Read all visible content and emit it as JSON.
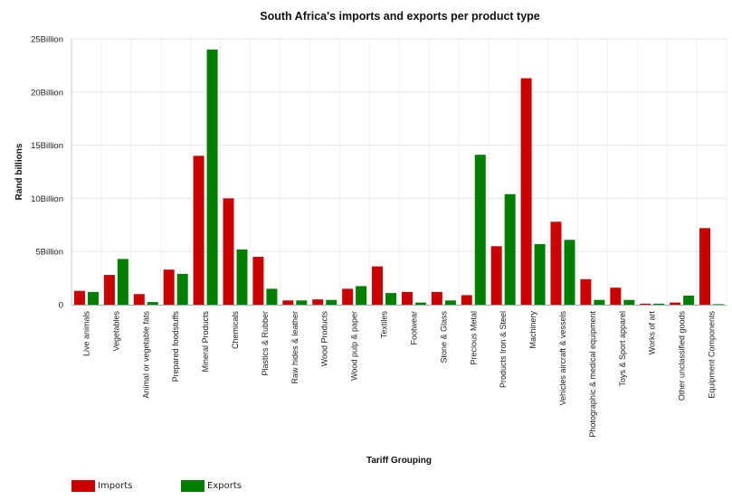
{
  "chart_data": {
    "type": "bar",
    "title": "South Africa's imports and exports per product type",
    "xlabel": "Tariff Grouping",
    "ylabel": "Rand billions",
    "ylim": [
      0,
      25
    ],
    "yticks": [
      {
        "value": 0,
        "label": "0"
      },
      {
        "value": 5,
        "label": "5Billion"
      },
      {
        "value": 10,
        "label": "10Billion"
      },
      {
        "value": 15,
        "label": "15Billion"
      },
      {
        "value": 20,
        "label": "20Billion"
      },
      {
        "value": 25,
        "label": "25Billion"
      }
    ],
    "grid": true,
    "legend_position": "bottom-left",
    "categories": [
      "Live animals",
      "Vegetables",
      "Animal or vegetable fats",
      "Prepared foodstuffs",
      "Mineral Products",
      "Chemicals",
      "Plastics & Rubber",
      "Raw hides & leather",
      "Wood Products",
      "Wood pulp & paper",
      "Textiles",
      "Footwear",
      "Stone & Glass",
      "Precious Metal",
      "Products Iron & Steel",
      "Machinery",
      "Vehicles aircraft & vessels",
      "Photographic & medical equipment",
      "Toys & Sport apparel",
      "Works of art",
      "Other unclassified goods",
      "Equipment Components"
    ],
    "series": [
      {
        "name": "Imports",
        "color": "#cc0000",
        "values": [
          1.3,
          2.8,
          1.0,
          3.3,
          14.0,
          10.0,
          4.5,
          0.4,
          0.5,
          1.5,
          3.6,
          1.2,
          1.2,
          0.9,
          5.5,
          21.3,
          7.8,
          2.4,
          1.6,
          0.1,
          0.2,
          7.2
        ]
      },
      {
        "name": "Exports",
        "color": "#008000",
        "values": [
          1.2,
          4.3,
          0.25,
          2.9,
          24.0,
          5.2,
          1.5,
          0.4,
          0.45,
          1.75,
          1.1,
          0.2,
          0.4,
          14.1,
          10.4,
          5.7,
          6.1,
          0.45,
          0.45,
          0.1,
          0.85,
          0.05
        ]
      }
    ]
  }
}
